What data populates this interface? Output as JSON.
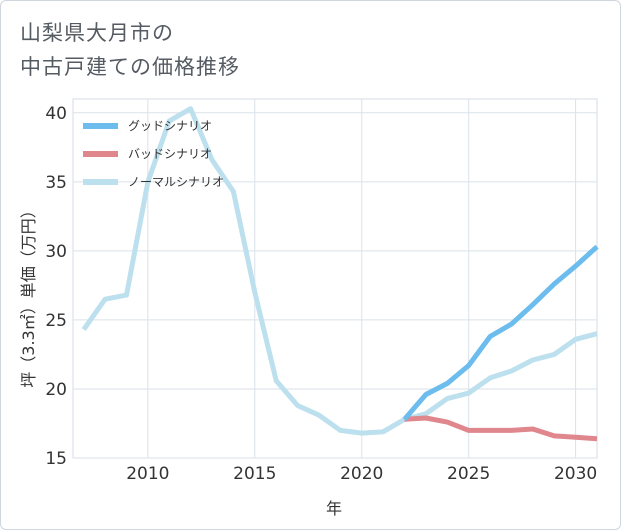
{
  "title_lines": [
    "山梨県大月市の",
    "中古戸建ての価格推移"
  ],
  "chart_data": {
    "type": "line",
    "xlabel": "年",
    "ylabel": "坪（3.3㎡）単価（万円）",
    "xlim": [
      2006.5,
      2031
    ],
    "ylim": [
      15,
      41
    ],
    "xticks": [
      2010,
      2015,
      2020,
      2025,
      2030
    ],
    "yticks": [
      15,
      20,
      25,
      30,
      35,
      40
    ],
    "grid": true,
    "legend_position": "top-left",
    "series": [
      {
        "name": "グッドシナリオ",
        "color": "#6cbcee",
        "x": [
          2022,
          2023,
          2024,
          2025,
          2026,
          2027,
          2028,
          2029,
          2030,
          2031
        ],
        "values": [
          17.8,
          19.6,
          20.4,
          21.7,
          23.8,
          24.7,
          26.1,
          27.6,
          28.9,
          30.3
        ]
      },
      {
        "name": "バッドシナリオ",
        "color": "#e0868d",
        "x": [
          2022,
          2023,
          2024,
          2025,
          2026,
          2027,
          2028,
          2029,
          2030,
          2031
        ],
        "values": [
          17.8,
          17.9,
          17.6,
          17.0,
          17.0,
          17.0,
          17.1,
          16.6,
          16.5,
          16.4
        ]
      },
      {
        "name": "ノーマルシナリオ",
        "color": "#bde0ee",
        "x": [
          2007,
          2008,
          2009,
          2010,
          2011,
          2012,
          2013,
          2014,
          2015,
          2016,
          2017,
          2018,
          2019,
          2020,
          2021,
          2022,
          2023,
          2024,
          2025,
          2026,
          2027,
          2028,
          2029,
          2030,
          2031
        ],
        "values": [
          24.3,
          26.5,
          26.8,
          35.0,
          39.4,
          40.3,
          36.6,
          34.3,
          27.0,
          20.6,
          18.8,
          18.1,
          17.0,
          16.8,
          16.9,
          17.8,
          18.2,
          19.3,
          19.7,
          20.8,
          21.3,
          22.1,
          22.5,
          23.6,
          24.0
        ]
      }
    ]
  }
}
